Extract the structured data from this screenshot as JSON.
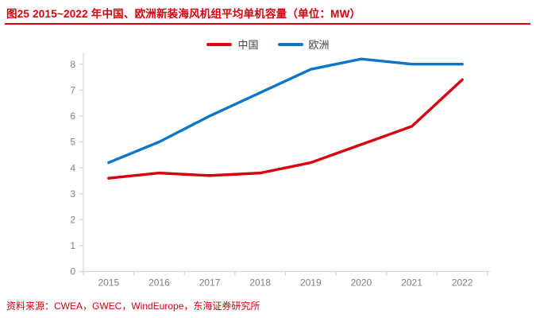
{
  "title": "图25  2015~2022 年中国、欧洲新装海风机组平均单机容量（单位：MW）",
  "source": "资料来源：CWEA，GWEC，WindEurope，东海证券研究所",
  "colors": {
    "accent_red": "#D7000F",
    "china_line": "#D7000F",
    "europe_line": "#0E76C6",
    "axis_line": "#D6D6D6",
    "tick_text": "#7F7F7F",
    "legend_text": "#404040"
  },
  "legend": {
    "items": [
      {
        "label": "中国"
      },
      {
        "label": "欧洲"
      }
    ]
  },
  "chart_data": {
    "type": "line",
    "title": "2015~2022 年中国、欧洲新装海风机组平均单机容量",
    "unit": "MW",
    "categories": [
      "2015",
      "2016",
      "2017",
      "2018",
      "2019",
      "2020",
      "2021",
      "2022"
    ],
    "series": [
      {
        "name": "中国",
        "slug": "china",
        "color": "#D7000F",
        "values": [
          3.6,
          3.8,
          3.7,
          3.8,
          4.2,
          4.9,
          5.6,
          7.4
        ]
      },
      {
        "name": "欧洲",
        "slug": "europe",
        "color": "#0E76C6",
        "values": [
          4.2,
          5.0,
          6.0,
          6.9,
          7.8,
          8.2,
          8.0,
          8.0
        ]
      }
    ],
    "xlabel": "",
    "ylabel": "",
    "ylim": [
      0,
      8
    ],
    "ytick_step": 1,
    "grid": false,
    "legend_position": "top-center"
  }
}
